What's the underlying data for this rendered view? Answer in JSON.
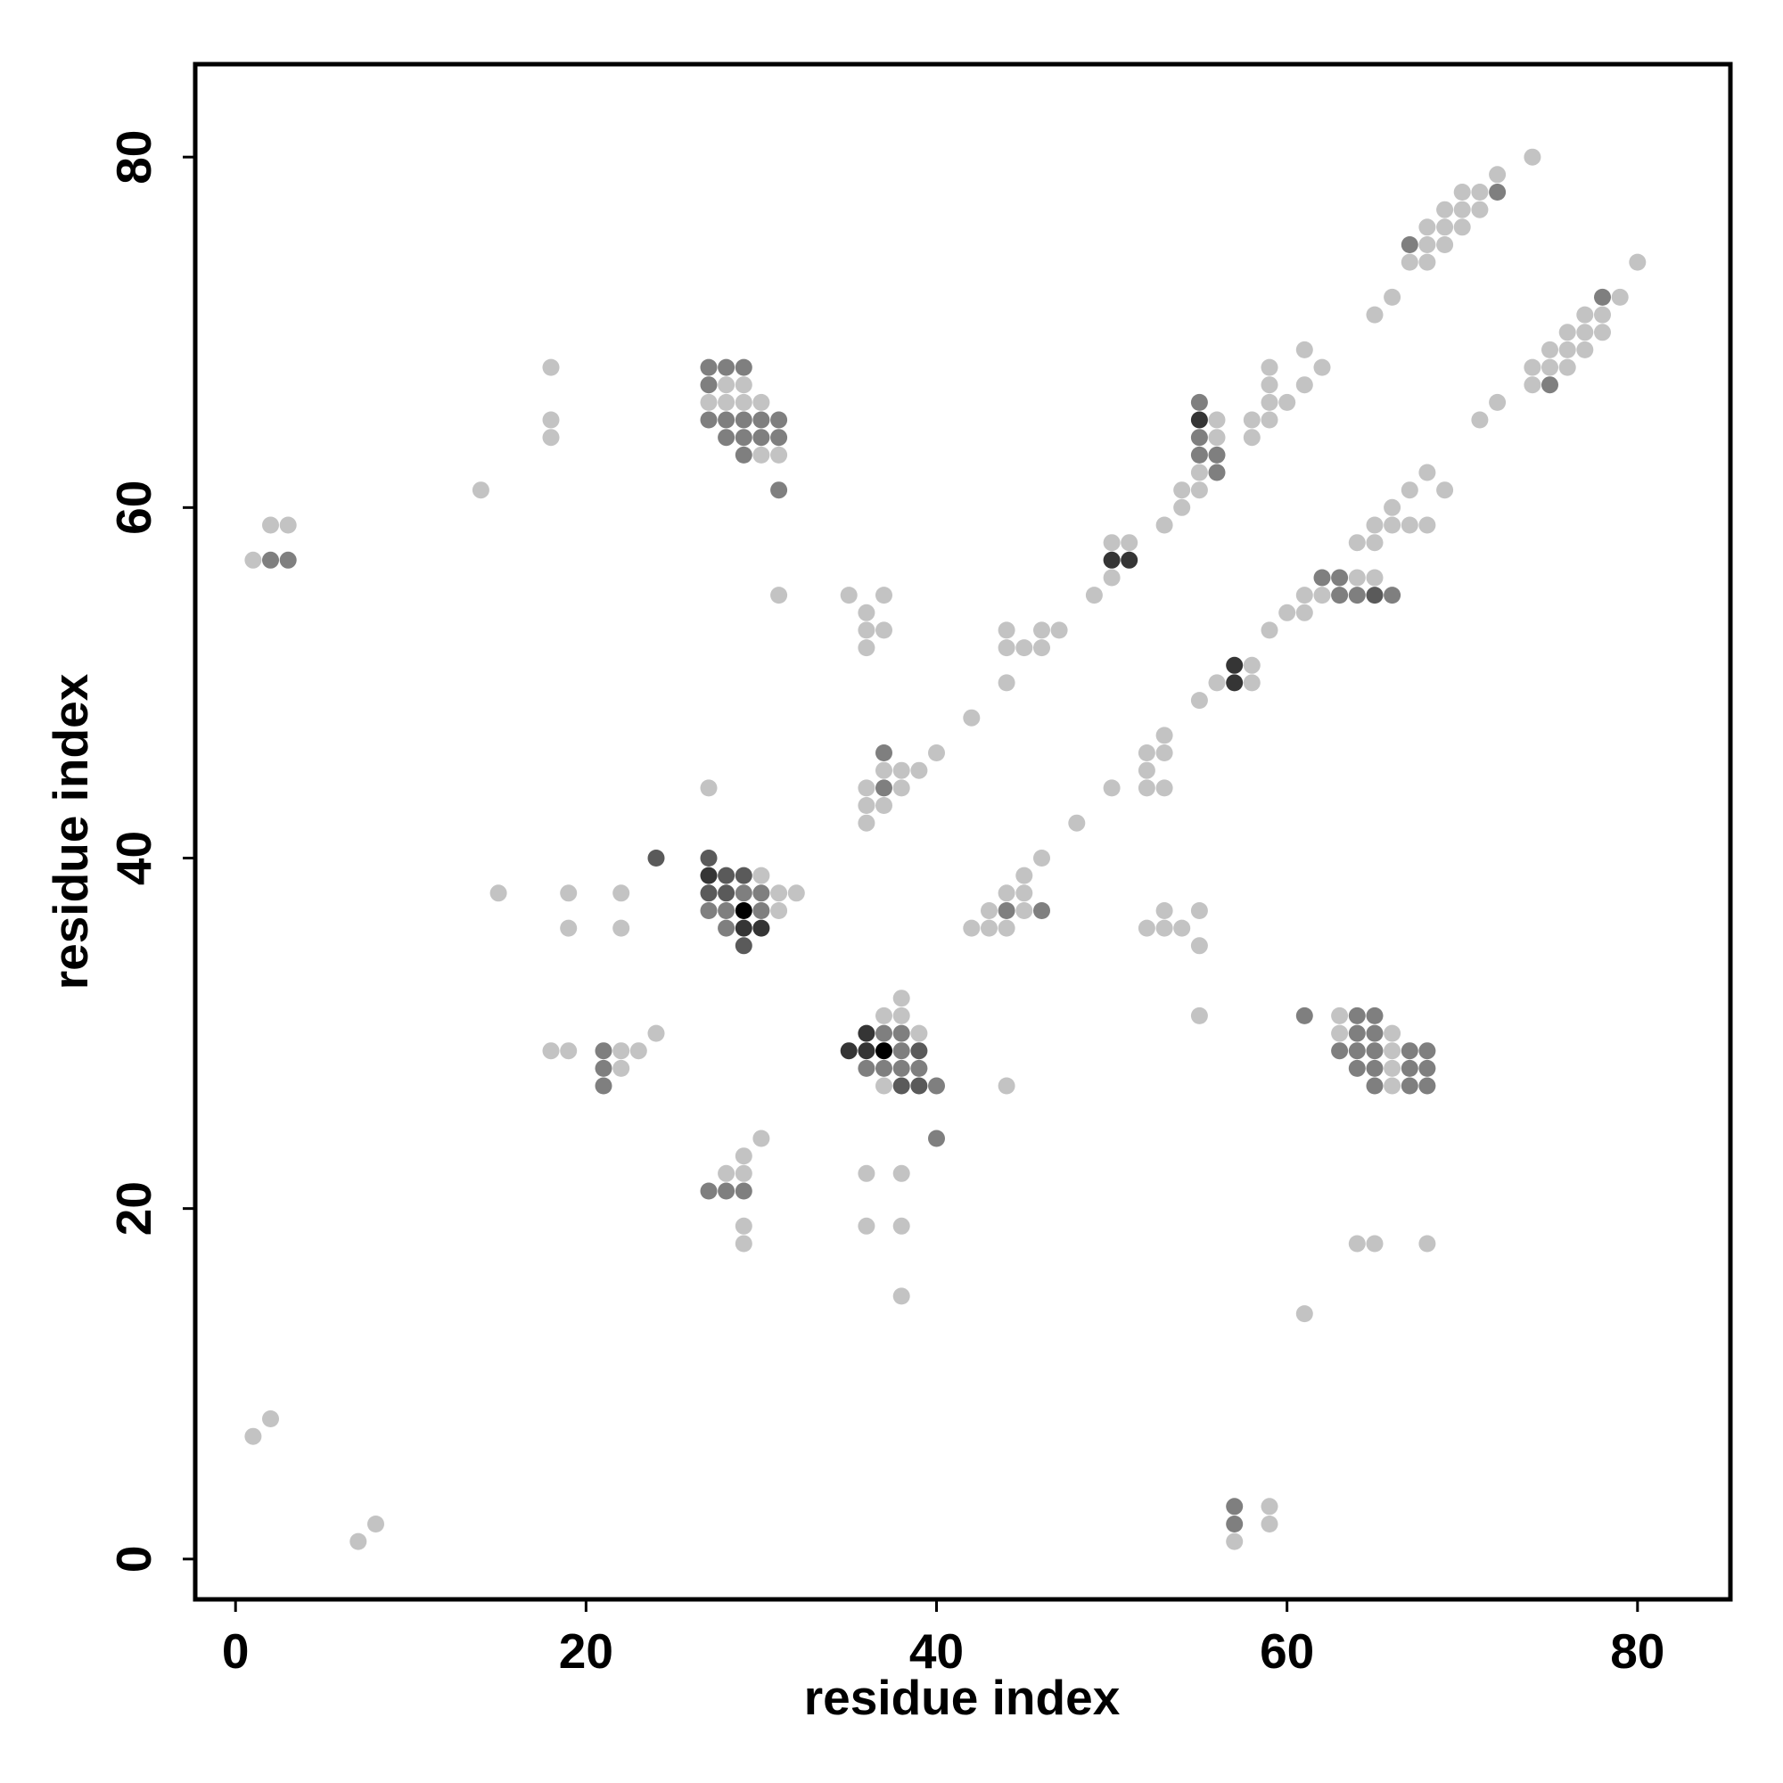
{
  "chart_data": {
    "type": "scatter",
    "title": "",
    "xlabel": "residue index",
    "ylabel": "residue index",
    "xlim": [
      -2.3,
      85.3
    ],
    "ylim": [
      -2.3,
      85.3
    ],
    "xticks": [
      "0",
      "20",
      "40",
      "60",
      "80"
    ],
    "yticks": [
      "0",
      "20",
      "40",
      "60",
      "80"
    ],
    "xtick_values": [
      0,
      20,
      40,
      60,
      80
    ],
    "ytick_values": [
      0,
      20,
      40,
      60,
      80
    ],
    "grid": false,
    "legend": "none",
    "point_color_scale": "grayscale",
    "point_note": "each point is [x, y, shade]; shade 1 = light gray, 5 = black",
    "points": [
      [
        1,
        57,
        1
      ],
      [
        2,
        57,
        2
      ],
      [
        3,
        57,
        2
      ],
      [
        2,
        59,
        1
      ],
      [
        3,
        59,
        1
      ],
      [
        1,
        7,
        1
      ],
      [
        2,
        8,
        1
      ],
      [
        7,
        1,
        1
      ],
      [
        8,
        2,
        1
      ],
      [
        14,
        61,
        1
      ],
      [
        18,
        68,
        1
      ],
      [
        18,
        65,
        1
      ],
      [
        18,
        64,
        1
      ],
      [
        15,
        38,
        1
      ],
      [
        19,
        38,
        1
      ],
      [
        19,
        36,
        1
      ],
      [
        22,
        38,
        1
      ],
      [
        22,
        36,
        1
      ],
      [
        24,
        40,
        3
      ],
      [
        18,
        29,
        1
      ],
      [
        19,
        29,
        1
      ],
      [
        21,
        29,
        2
      ],
      [
        21,
        28,
        2
      ],
      [
        21,
        27,
        2
      ],
      [
        22,
        29,
        1
      ],
      [
        22,
        28,
        1
      ],
      [
        23,
        29,
        1
      ],
      [
        24,
        30,
        1
      ],
      [
        27,
        68,
        2
      ],
      [
        28,
        68,
        2
      ],
      [
        29,
        68,
        2
      ],
      [
        27,
        67,
        2
      ],
      [
        28,
        67,
        1
      ],
      [
        29,
        67,
        1
      ],
      [
        27,
        66,
        1
      ],
      [
        28,
        66,
        1
      ],
      [
        29,
        66,
        1
      ],
      [
        30,
        66,
        1
      ],
      [
        27,
        65,
        2
      ],
      [
        28,
        65,
        2
      ],
      [
        29,
        65,
        2
      ],
      [
        30,
        65,
        2
      ],
      [
        31,
        65,
        2
      ],
      [
        28,
        64,
        2
      ],
      [
        29,
        64,
        2
      ],
      [
        30,
        64,
        2
      ],
      [
        31,
        64,
        2
      ],
      [
        29,
        63,
        2
      ],
      [
        30,
        63,
        1
      ],
      [
        31,
        63,
        1
      ],
      [
        31,
        61,
        2
      ],
      [
        31,
        55,
        1
      ],
      [
        27,
        44,
        1
      ],
      [
        27,
        40,
        3
      ],
      [
        27,
        39,
        4
      ],
      [
        28,
        39,
        3
      ],
      [
        29,
        39,
        3
      ],
      [
        30,
        39,
        1
      ],
      [
        27,
        38,
        3
      ],
      [
        28,
        38,
        3
      ],
      [
        29,
        38,
        2
      ],
      [
        30,
        38,
        2
      ],
      [
        31,
        38,
        1
      ],
      [
        32,
        38,
        1
      ],
      [
        27,
        37,
        2
      ],
      [
        28,
        37,
        2
      ],
      [
        29,
        37,
        5
      ],
      [
        30,
        37,
        2
      ],
      [
        31,
        37,
        1
      ],
      [
        28,
        36,
        2
      ],
      [
        29,
        36,
        4
      ],
      [
        30,
        36,
        4
      ],
      [
        29,
        35,
        3
      ],
      [
        30,
        24,
        1
      ],
      [
        29,
        23,
        1
      ],
      [
        28,
        22,
        1
      ],
      [
        29,
        22,
        1
      ],
      [
        27,
        21,
        2
      ],
      [
        28,
        21,
        2
      ],
      [
        29,
        21,
        2
      ],
      [
        29,
        19,
        1
      ],
      [
        29,
        18,
        1
      ],
      [
        35,
        55,
        1
      ],
      [
        36,
        54,
        1
      ],
      [
        37,
        55,
        1
      ],
      [
        36,
        53,
        1
      ],
      [
        37,
        53,
        1
      ],
      [
        36,
        52,
        1
      ],
      [
        37,
        46,
        2
      ],
      [
        37,
        45,
        1
      ],
      [
        38,
        45,
        1
      ],
      [
        39,
        45,
        1
      ],
      [
        40,
        46,
        1
      ],
      [
        36,
        44,
        1
      ],
      [
        37,
        44,
        2
      ],
      [
        38,
        44,
        1
      ],
      [
        36,
        43,
        1
      ],
      [
        37,
        43,
        1
      ],
      [
        36,
        42,
        1
      ],
      [
        38,
        32,
        1
      ],
      [
        37,
        31,
        1
      ],
      [
        38,
        31,
        1
      ],
      [
        36,
        30,
        4
      ],
      [
        37,
        30,
        2
      ],
      [
        38,
        30,
        2
      ],
      [
        39,
        30,
        1
      ],
      [
        35,
        29,
        4
      ],
      [
        36,
        29,
        4
      ],
      [
        37,
        29,
        5
      ],
      [
        38,
        29,
        2
      ],
      [
        39,
        29,
        3
      ],
      [
        36,
        28,
        2
      ],
      [
        37,
        28,
        2
      ],
      [
        38,
        28,
        2
      ],
      [
        39,
        28,
        2
      ],
      [
        37,
        27,
        1
      ],
      [
        38,
        27,
        3
      ],
      [
        39,
        27,
        3
      ],
      [
        40,
        27,
        2
      ],
      [
        40,
        24,
        2
      ],
      [
        36,
        22,
        1
      ],
      [
        38,
        22,
        1
      ],
      [
        36,
        19,
        1
      ],
      [
        38,
        19,
        1
      ],
      [
        38,
        15,
        1
      ],
      [
        42,
        48,
        1
      ],
      [
        44,
        53,
        1
      ],
      [
        44,
        52,
        1
      ],
      [
        45,
        52,
        1
      ],
      [
        46,
        53,
        1
      ],
      [
        47,
        53,
        1
      ],
      [
        46,
        52,
        1
      ],
      [
        44,
        50,
        1
      ],
      [
        42,
        36,
        1
      ],
      [
        43,
        36,
        1
      ],
      [
        44,
        36,
        1
      ],
      [
        43,
        37,
        1
      ],
      [
        44,
        37,
        2
      ],
      [
        45,
        37,
        1
      ],
      [
        46,
        37,
        2
      ],
      [
        44,
        38,
        1
      ],
      [
        45,
        38,
        1
      ],
      [
        45,
        39,
        1
      ],
      [
        46,
        40,
        1
      ],
      [
        44,
        27,
        1
      ],
      [
        48,
        42,
        1
      ],
      [
        49,
        55,
        1
      ],
      [
        50,
        56,
        1
      ],
      [
        50,
        58,
        1
      ],
      [
        51,
        58,
        1
      ],
      [
        50,
        57,
        4
      ],
      [
        51,
        57,
        4
      ],
      [
        50,
        44,
        1
      ],
      [
        52,
        46,
        1
      ],
      [
        53,
        46,
        1
      ],
      [
        52,
        45,
        1
      ],
      [
        53,
        47,
        1
      ],
      [
        52,
        44,
        1
      ],
      [
        53,
        44,
        1
      ],
      [
        52,
        36,
        1
      ],
      [
        53,
        36,
        1
      ],
      [
        54,
        36,
        1
      ],
      [
        53,
        37,
        1
      ],
      [
        55,
        37,
        1
      ],
      [
        55,
        35,
        1
      ],
      [
        55,
        31,
        1
      ],
      [
        53,
        59,
        1
      ],
      [
        54,
        60,
        1
      ],
      [
        54,
        61,
        1
      ],
      [
        55,
        66,
        2
      ],
      [
        55,
        65,
        4
      ],
      [
        56,
        65,
        1
      ],
      [
        55,
        64,
        2
      ],
      [
        56,
        64,
        1
      ],
      [
        55,
        63,
        2
      ],
      [
        56,
        63,
        2
      ],
      [
        55,
        62,
        1
      ],
      [
        56,
        62,
        2
      ],
      [
        55,
        61,
        1
      ],
      [
        55,
        49,
        1
      ],
      [
        56,
        50,
        1
      ],
      [
        57,
        51,
        4
      ],
      [
        57,
        50,
        4
      ],
      [
        58,
        51,
        1
      ],
      [
        58,
        50,
        1
      ],
      [
        57,
        3,
        2
      ],
      [
        57,
        2,
        2
      ],
      [
        57,
        1,
        1
      ],
      [
        59,
        3,
        1
      ],
      [
        59,
        2,
        1
      ],
      [
        58,
        65,
        1
      ],
      [
        58,
        64,
        1
      ],
      [
        59,
        68,
        1
      ],
      [
        59,
        67,
        1
      ],
      [
        59,
        66,
        1
      ],
      [
        59,
        65,
        1
      ],
      [
        60,
        66,
        1
      ],
      [
        61,
        69,
        1
      ],
      [
        61,
        67,
        1
      ],
      [
        62,
        68,
        1
      ],
      [
        59,
        53,
        1
      ],
      [
        60,
        54,
        1
      ],
      [
        61,
        54,
        1
      ],
      [
        61,
        55,
        1
      ],
      [
        62,
        56,
        2
      ],
      [
        63,
        56,
        2
      ],
      [
        62,
        55,
        1
      ],
      [
        63,
        55,
        2
      ],
      [
        64,
        55,
        2
      ],
      [
        65,
        55,
        3
      ],
      [
        66,
        55,
        2
      ],
      [
        64,
        56,
        1
      ],
      [
        65,
        56,
        1
      ],
      [
        64,
        58,
        1
      ],
      [
        65,
        58,
        1
      ],
      [
        65,
        59,
        1
      ],
      [
        66,
        59,
        1
      ],
      [
        66,
        60,
        1
      ],
      [
        67,
        59,
        1
      ],
      [
        68,
        59,
        1
      ],
      [
        67,
        61,
        1
      ],
      [
        68,
        62,
        1
      ],
      [
        69,
        61,
        1
      ],
      [
        61,
        31,
        2
      ],
      [
        61,
        14,
        1
      ],
      [
        63,
        31,
        1
      ],
      [
        64,
        31,
        2
      ],
      [
        65,
        31,
        2
      ],
      [
        63,
        30,
        1
      ],
      [
        64,
        30,
        2
      ],
      [
        65,
        30,
        2
      ],
      [
        66,
        30,
        1
      ],
      [
        63,
        29,
        2
      ],
      [
        64,
        29,
        2
      ],
      [
        65,
        29,
        2
      ],
      [
        66,
        29,
        1
      ],
      [
        67,
        29,
        2
      ],
      [
        68,
        29,
        2
      ],
      [
        64,
        28,
        2
      ],
      [
        65,
        28,
        2
      ],
      [
        66,
        28,
        1
      ],
      [
        67,
        28,
        2
      ],
      [
        68,
        28,
        2
      ],
      [
        65,
        27,
        2
      ],
      [
        66,
        27,
        1
      ],
      [
        67,
        27,
        2
      ],
      [
        68,
        27,
        2
      ],
      [
        64,
        18,
        1
      ],
      [
        65,
        18,
        1
      ],
      [
        68,
        18,
        1
      ],
      [
        65,
        71,
        1
      ],
      [
        66,
        72,
        1
      ],
      [
        67,
        75,
        2
      ],
      [
        67,
        74,
        1
      ],
      [
        68,
        75,
        1
      ],
      [
        68,
        74,
        1
      ],
      [
        68,
        76,
        1
      ],
      [
        69,
        76,
        1
      ],
      [
        69,
        75,
        1
      ],
      [
        69,
        77,
        1
      ],
      [
        70,
        77,
        1
      ],
      [
        70,
        76,
        1
      ],
      [
        70,
        78,
        1
      ],
      [
        71,
        78,
        1
      ],
      [
        71,
        77,
        1
      ],
      [
        72,
        79,
        1
      ],
      [
        72,
        78,
        2
      ],
      [
        74,
        80,
        1
      ],
      [
        71,
        65,
        1
      ],
      [
        72,
        66,
        1
      ],
      [
        74,
        68,
        1
      ],
      [
        74,
        67,
        1
      ],
      [
        75,
        69,
        1
      ],
      [
        75,
        68,
        1
      ],
      [
        75,
        67,
        2
      ],
      [
        76,
        70,
        1
      ],
      [
        76,
        69,
        1
      ],
      [
        76,
        68,
        1
      ],
      [
        77,
        70,
        1
      ],
      [
        77,
        69,
        1
      ],
      [
        77,
        71,
        1
      ],
      [
        78,
        71,
        1
      ],
      [
        78,
        70,
        1
      ],
      [
        78,
        72,
        2
      ],
      [
        79,
        72,
        1
      ],
      [
        80,
        74,
        1
      ]
    ]
  }
}
